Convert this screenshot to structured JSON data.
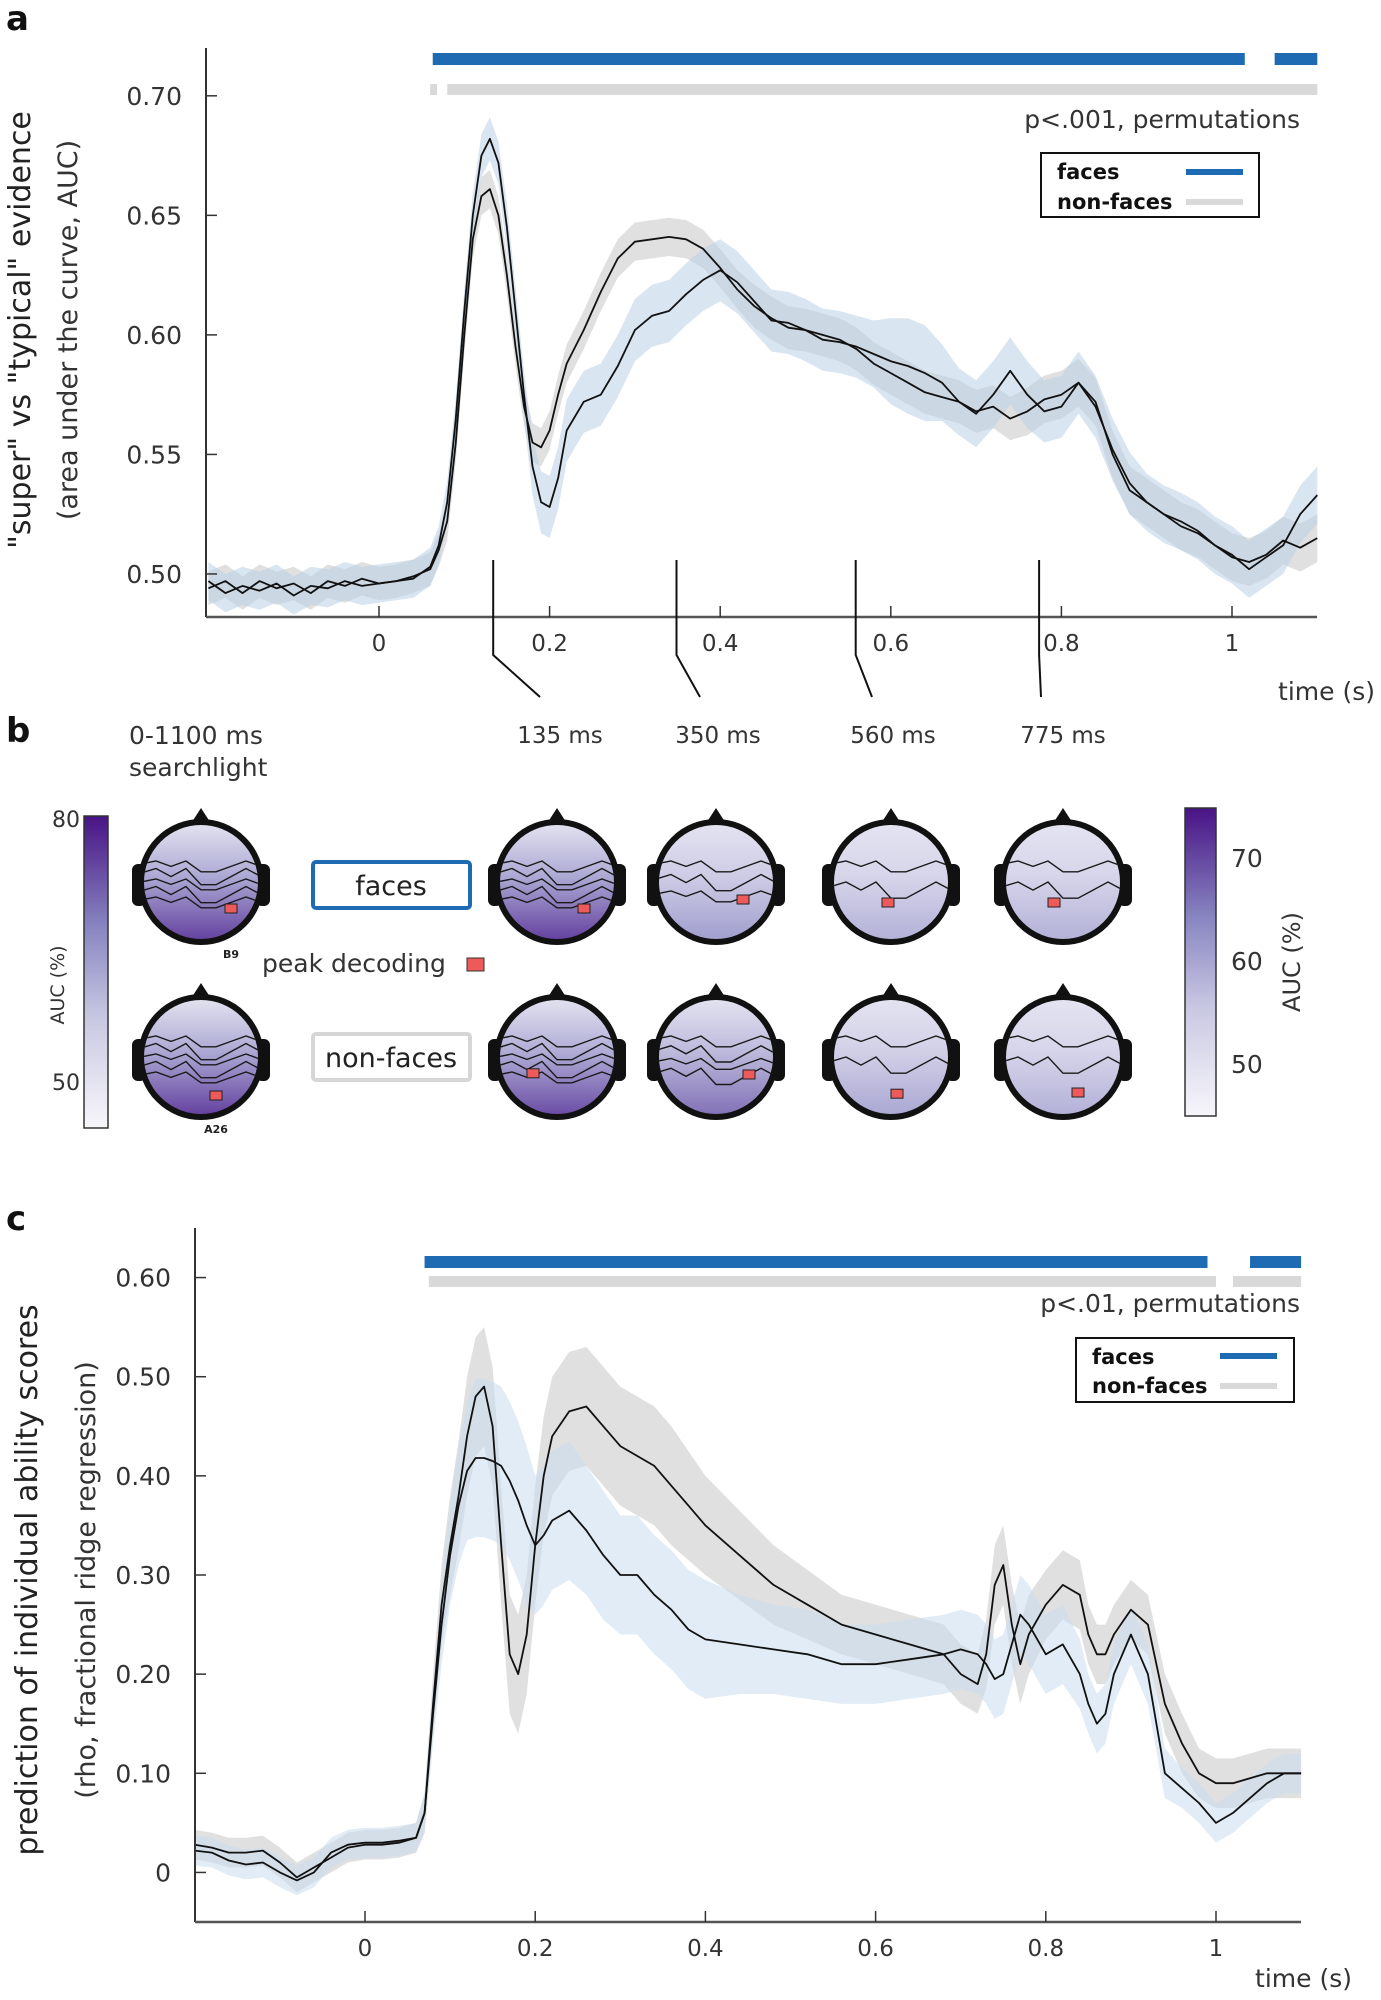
{
  "chart_data": [
    {
      "panel": "a",
      "type": "line",
      "title": "",
      "xlabel": "time (s)",
      "ylabel": "\"super\" vs \"typical\" evidence",
      "ylabel2": "(area under the curve, AUC)",
      "xlim": [
        -0.2,
        1.1
      ],
      "ylim": [
        0.482,
        0.72
      ],
      "xticks": [
        0,
        0.2,
        0.4,
        0.6,
        0.8,
        1
      ],
      "xtick_labels": [
        "0",
        "0.2",
        "0.4",
        "0.6",
        "0.8",
        "1"
      ],
      "yticks": [
        0.5,
        0.55,
        0.6,
        0.65,
        0.7
      ],
      "ytick_labels": [
        "0.50",
        "0.55",
        "0.60",
        "0.65",
        "0.70"
      ],
      "grid": false,
      "significance_note": "p<.001, permutations",
      "legend": {
        "placement": "top-right",
        "entries": [
          "faces",
          "non-faces"
        ]
      },
      "significance_bars": {
        "faces": [
          [
            0.063,
            1.015
          ],
          [
            1.05,
            1.1
          ]
        ],
        "non-faces": [
          [
            0.06,
            0.068
          ],
          [
            0.08,
            1.1
          ]
        ]
      },
      "x": [
        -0.2,
        -0.18,
        -0.16,
        -0.14,
        -0.12,
        -0.1,
        -0.08,
        -0.06,
        -0.04,
        -0.02,
        0,
        0.02,
        0.04,
        0.06,
        0.07,
        0.08,
        0.09,
        0.1,
        0.11,
        0.12,
        0.13,
        0.14,
        0.15,
        0.16,
        0.17,
        0.18,
        0.19,
        0.2,
        0.21,
        0.22,
        0.24,
        0.26,
        0.28,
        0.3,
        0.32,
        0.34,
        0.36,
        0.38,
        0.4,
        0.42,
        0.44,
        0.46,
        0.48,
        0.5,
        0.52,
        0.54,
        0.56,
        0.58,
        0.6,
        0.62,
        0.64,
        0.66,
        0.68,
        0.7,
        0.72,
        0.74,
        0.76,
        0.78,
        0.8,
        0.82,
        0.84,
        0.86,
        0.88,
        0.9,
        0.92,
        0.94,
        0.96,
        0.98,
        1.0,
        1.02,
        1.04,
        1.06,
        1.08,
        1.1
      ],
      "series": [
        {
          "name": "faces",
          "band_color": "#b9cfe6",
          "values": [
            0.497,
            0.492,
            0.495,
            0.493,
            0.496,
            0.491,
            0.495,
            0.494,
            0.497,
            0.495,
            0.496,
            0.497,
            0.498,
            0.503,
            0.512,
            0.53,
            0.565,
            0.61,
            0.65,
            0.675,
            0.682,
            0.672,
            0.645,
            0.61,
            0.575,
            0.545,
            0.53,
            0.528,
            0.54,
            0.56,
            0.572,
            0.575,
            0.587,
            0.602,
            0.608,
            0.61,
            0.617,
            0.623,
            0.627,
            0.622,
            0.614,
            0.606,
            0.605,
            0.602,
            0.598,
            0.597,
            0.595,
            0.592,
            0.589,
            0.587,
            0.584,
            0.58,
            0.572,
            0.567,
            0.575,
            0.585,
            0.575,
            0.568,
            0.57,
            0.58,
            0.57,
            0.552,
            0.538,
            0.53,
            0.525,
            0.522,
            0.518,
            0.512,
            0.508,
            0.502,
            0.507,
            0.512,
            0.525,
            0.533
          ],
          "band_halfwidth": [
            0.008,
            0.008,
            0.008,
            0.008,
            0.008,
            0.008,
            0.008,
            0.008,
            0.008,
            0.008,
            0.008,
            0.008,
            0.008,
            0.008,
            0.008,
            0.009,
            0.009,
            0.009,
            0.009,
            0.009,
            0.009,
            0.009,
            0.01,
            0.01,
            0.01,
            0.012,
            0.013,
            0.013,
            0.013,
            0.013,
            0.013,
            0.013,
            0.013,
            0.013,
            0.013,
            0.013,
            0.013,
            0.013,
            0.013,
            0.013,
            0.013,
            0.013,
            0.013,
            0.013,
            0.013,
            0.013,
            0.013,
            0.014,
            0.018,
            0.02,
            0.02,
            0.016,
            0.014,
            0.014,
            0.014,
            0.014,
            0.014,
            0.013,
            0.013,
            0.013,
            0.013,
            0.013,
            0.013,
            0.012,
            0.012,
            0.012,
            0.012,
            0.012,
            0.012,
            0.012,
            0.012,
            0.012,
            0.012,
            0.012
          ]
        },
        {
          "name": "non-faces",
          "band_color": "#d3d3d3",
          "values": [
            0.494,
            0.497,
            0.492,
            0.497,
            0.494,
            0.496,
            0.492,
            0.497,
            0.495,
            0.498,
            0.496,
            0.497,
            0.499,
            0.502,
            0.51,
            0.522,
            0.555,
            0.6,
            0.64,
            0.658,
            0.661,
            0.65,
            0.625,
            0.595,
            0.57,
            0.555,
            0.553,
            0.56,
            0.575,
            0.588,
            0.602,
            0.618,
            0.632,
            0.639,
            0.64,
            0.641,
            0.64,
            0.636,
            0.628,
            0.619,
            0.612,
            0.607,
            0.603,
            0.602,
            0.6,
            0.598,
            0.594,
            0.588,
            0.584,
            0.58,
            0.576,
            0.574,
            0.572,
            0.568,
            0.57,
            0.565,
            0.568,
            0.573,
            0.575,
            0.58,
            0.572,
            0.55,
            0.535,
            0.53,
            0.525,
            0.52,
            0.517,
            0.512,
            0.507,
            0.505,
            0.508,
            0.514,
            0.511,
            0.515
          ],
          "band_halfwidth": [
            0.007,
            0.007,
            0.007,
            0.007,
            0.007,
            0.007,
            0.007,
            0.007,
            0.007,
            0.007,
            0.007,
            0.007,
            0.007,
            0.007,
            0.007,
            0.008,
            0.008,
            0.008,
            0.008,
            0.008,
            0.008,
            0.008,
            0.008,
            0.008,
            0.008,
            0.008,
            0.008,
            0.008,
            0.008,
            0.008,
            0.008,
            0.008,
            0.008,
            0.008,
            0.008,
            0.008,
            0.008,
            0.008,
            0.008,
            0.008,
            0.009,
            0.009,
            0.009,
            0.009,
            0.009,
            0.009,
            0.009,
            0.009,
            0.009,
            0.009,
            0.009,
            0.009,
            0.009,
            0.009,
            0.009,
            0.009,
            0.01,
            0.01,
            0.01,
            0.01,
            0.01,
            0.01,
            0.01,
            0.01,
            0.01,
            0.01,
            0.01,
            0.01,
            0.01,
            0.01,
            0.01,
            0.01,
            0.01,
            0.01
          ]
        }
      ]
    },
    {
      "panel": "c",
      "type": "line",
      "title": "",
      "xlabel": "time (s)",
      "ylabel": "prediction of individual ability scores",
      "ylabel2": "(rho, fractional ridge regression)",
      "xlim": [
        -0.2,
        1.1
      ],
      "ylim": [
        -0.05,
        0.65
      ],
      "xticks": [
        0,
        0.2,
        0.4,
        0.6,
        0.8,
        1
      ],
      "xtick_labels": [
        "0",
        "0.2",
        "0.4",
        "0.6",
        "0.8",
        "1"
      ],
      "yticks": [
        0,
        0.1,
        0.2,
        0.3,
        0.4,
        0.5,
        0.6
      ],
      "ytick_labels": [
        "0",
        "0.10",
        "0.20",
        "0.30",
        "0.40",
        "0.50",
        "0.60"
      ],
      "grid": false,
      "significance_note": "p<.01, permutations",
      "legend": {
        "placement": "top-right",
        "entries": [
          "faces",
          "non-faces"
        ]
      },
      "significance_bars": {
        "faces": [
          [
            0.07,
            0.99
          ],
          [
            1.04,
            1.1
          ]
        ],
        "non-faces": [
          [
            0.075,
            1.0
          ],
          [
            1.02,
            1.1
          ]
        ]
      },
      "x": [
        -0.2,
        -0.18,
        -0.16,
        -0.14,
        -0.12,
        -0.1,
        -0.08,
        -0.06,
        -0.04,
        -0.02,
        0,
        0.02,
        0.04,
        0.06,
        0.07,
        0.08,
        0.09,
        0.1,
        0.11,
        0.12,
        0.13,
        0.14,
        0.15,
        0.16,
        0.17,
        0.18,
        0.19,
        0.2,
        0.21,
        0.22,
        0.24,
        0.26,
        0.28,
        0.3,
        0.32,
        0.34,
        0.36,
        0.38,
        0.4,
        0.44,
        0.48,
        0.52,
        0.56,
        0.6,
        0.64,
        0.68,
        0.7,
        0.72,
        0.73,
        0.74,
        0.75,
        0.76,
        0.77,
        0.78,
        0.8,
        0.82,
        0.84,
        0.85,
        0.86,
        0.87,
        0.88,
        0.9,
        0.92,
        0.94,
        0.96,
        0.98,
        1.0,
        1.02,
        1.04,
        1.06,
        1.08,
        1.1
      ],
      "series": [
        {
          "name": "faces",
          "band_color": "#c9dcee",
          "values": [
            0.022,
            0.02,
            0.012,
            0.008,
            0.01,
            0.0,
            -0.008,
            0.0,
            0.02,
            0.028,
            0.03,
            0.03,
            0.032,
            0.035,
            0.06,
            0.16,
            0.25,
            0.32,
            0.37,
            0.405,
            0.418,
            0.418,
            0.415,
            0.41,
            0.395,
            0.375,
            0.35,
            0.33,
            0.34,
            0.355,
            0.365,
            0.345,
            0.32,
            0.3,
            0.3,
            0.28,
            0.265,
            0.245,
            0.235,
            0.23,
            0.225,
            0.22,
            0.21,
            0.21,
            0.215,
            0.22,
            0.225,
            0.22,
            0.21,
            0.195,
            0.2,
            0.23,
            0.26,
            0.25,
            0.22,
            0.23,
            0.2,
            0.17,
            0.15,
            0.16,
            0.2,
            0.24,
            0.2,
            0.1,
            0.085,
            0.07,
            0.05,
            0.06,
            0.075,
            0.09,
            0.1,
            0.1
          ],
          "band_halfwidth": [
            0.015,
            0.015,
            0.015,
            0.015,
            0.015,
            0.015,
            0.015,
            0.015,
            0.015,
            0.015,
            0.015,
            0.015,
            0.015,
            0.015,
            0.02,
            0.03,
            0.04,
            0.05,
            0.06,
            0.07,
            0.08,
            0.08,
            0.08,
            0.08,
            0.08,
            0.08,
            0.08,
            0.07,
            0.07,
            0.07,
            0.07,
            0.065,
            0.065,
            0.06,
            0.06,
            0.06,
            0.06,
            0.06,
            0.06,
            0.05,
            0.045,
            0.045,
            0.04,
            0.04,
            0.04,
            0.04,
            0.04,
            0.04,
            0.04,
            0.04,
            0.04,
            0.04,
            0.04,
            0.04,
            0.04,
            0.04,
            0.035,
            0.03,
            0.03,
            0.03,
            0.03,
            0.03,
            0.03,
            0.025,
            0.02,
            0.02,
            0.02,
            0.02,
            0.02,
            0.02,
            0.02,
            0.02
          ]
        },
        {
          "name": "non-faces",
          "band_color": "#d3d3d3",
          "values": [
            0.028,
            0.025,
            0.02,
            0.02,
            0.022,
            0.01,
            -0.005,
            0.005,
            0.015,
            0.025,
            0.028,
            0.028,
            0.03,
            0.035,
            0.06,
            0.17,
            0.27,
            0.33,
            0.38,
            0.44,
            0.48,
            0.49,
            0.45,
            0.33,
            0.22,
            0.2,
            0.24,
            0.33,
            0.4,
            0.44,
            0.465,
            0.47,
            0.45,
            0.43,
            0.42,
            0.41,
            0.39,
            0.37,
            0.35,
            0.32,
            0.29,
            0.27,
            0.25,
            0.24,
            0.23,
            0.22,
            0.2,
            0.19,
            0.22,
            0.29,
            0.31,
            0.25,
            0.21,
            0.24,
            0.27,
            0.29,
            0.28,
            0.24,
            0.22,
            0.22,
            0.24,
            0.265,
            0.25,
            0.17,
            0.13,
            0.1,
            0.09,
            0.09,
            0.095,
            0.1,
            0.1,
            0.1
          ],
          "band_halfwidth": [
            0.015,
            0.015,
            0.015,
            0.015,
            0.015,
            0.015,
            0.015,
            0.015,
            0.015,
            0.015,
            0.015,
            0.015,
            0.015,
            0.015,
            0.02,
            0.03,
            0.04,
            0.05,
            0.055,
            0.06,
            0.06,
            0.06,
            0.06,
            0.06,
            0.06,
            0.06,
            0.06,
            0.06,
            0.06,
            0.06,
            0.06,
            0.06,
            0.06,
            0.06,
            0.06,
            0.06,
            0.06,
            0.055,
            0.05,
            0.045,
            0.04,
            0.035,
            0.03,
            0.03,
            0.03,
            0.03,
            0.03,
            0.03,
            0.035,
            0.04,
            0.04,
            0.04,
            0.04,
            0.04,
            0.035,
            0.035,
            0.035,
            0.03,
            0.03,
            0.03,
            0.03,
            0.03,
            0.03,
            0.03,
            0.03,
            0.025,
            0.025,
            0.025,
            0.025,
            0.025,
            0.025,
            0.025
          ]
        }
      ]
    },
    {
      "panel": "b",
      "type": "heatmap",
      "title": "scalp topographies",
      "searchlight_label_line1": "0-1100 ms",
      "searchlight_label_line2": "searchlight",
      "timepoint_labels": [
        "135 ms",
        "350 ms",
        "560 ms",
        "775 ms"
      ],
      "timepoints_s": [
        0.135,
        0.35,
        0.56,
        0.775
      ],
      "conditions": [
        "faces",
        "non-faces"
      ],
      "peak_marker_label": "peak decoding",
      "peak_electrodes": {
        "faces": "B9",
        "non-faces": "A26"
      },
      "colorbar_left": {
        "label": "AUC (%)",
        "ticks": [
          "80",
          "50"
        ],
        "range": [
          45,
          80
        ]
      },
      "colorbar_right": {
        "label": "AUC (%)",
        "ticks": [
          "70",
          "60",
          "50"
        ],
        "range": [
          45,
          75
        ]
      },
      "peak_level": {
        "faces": {
          "searchlight": 0.85,
          "135 ms": 0.85,
          "350 ms": 0.45,
          "560 ms": 0.35,
          "775 ms": 0.35
        },
        "non-faces": {
          "searchlight": 0.85,
          "135 ms": 0.8,
          "350 ms": 0.65,
          "560 ms": 0.4,
          "775 ms": 0.35
        }
      }
    }
  ],
  "panel_letters": {
    "a": "a",
    "b": "b",
    "c": "c"
  },
  "legend_labels": {
    "faces": "faces",
    "non_faces": "non-faces"
  },
  "colors": {
    "faces_bar": "#1f6bb3",
    "nonfaces_bar": "#d9d9d9",
    "line": "#111111",
    "peak_marker": "#ee5a5a",
    "topo_dark": "#4b1a8c",
    "topo_light": "#f4f3f9"
  }
}
